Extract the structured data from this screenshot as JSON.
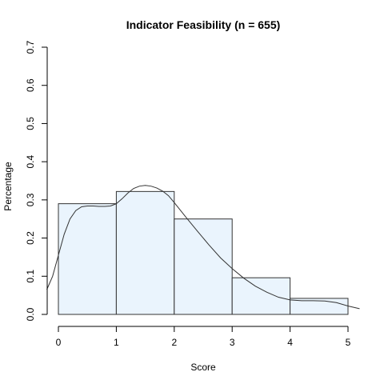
{
  "chart_data": {
    "type": "bar",
    "title": "Indicator Feasibility (n = 655)",
    "xlabel": "Score",
    "ylabel": "Percentage",
    "bins": [
      {
        "x0": 0,
        "x1": 1,
        "value": 0.29
      },
      {
        "x0": 1,
        "x1": 2,
        "value": 0.322
      },
      {
        "x0": 2,
        "x1": 3,
        "value": 0.25
      },
      {
        "x0": 3,
        "x1": 4,
        "value": 0.096
      },
      {
        "x0": 4,
        "x1": 5,
        "value": 0.042
      }
    ],
    "density_curve": {
      "x": [
        -0.2,
        -0.1,
        0.0,
        0.1,
        0.2,
        0.3,
        0.4,
        0.5,
        0.6,
        0.7,
        0.8,
        0.9,
        1.0,
        1.1,
        1.2,
        1.3,
        1.4,
        1.5,
        1.6,
        1.7,
        1.8,
        1.9,
        2.0,
        2.2,
        2.4,
        2.6,
        2.8,
        3.0,
        3.2,
        3.4,
        3.6,
        3.8,
        4.0,
        4.2,
        4.4,
        4.6,
        4.8,
        5.0,
        5.2
      ],
      "y": [
        0.065,
        0.1,
        0.155,
        0.21,
        0.25,
        0.272,
        0.282,
        0.284,
        0.284,
        0.283,
        0.283,
        0.284,
        0.29,
        0.303,
        0.318,
        0.33,
        0.336,
        0.338,
        0.336,
        0.331,
        0.323,
        0.311,
        0.293,
        0.255,
        0.218,
        0.182,
        0.148,
        0.12,
        0.095,
        0.074,
        0.058,
        0.045,
        0.038,
        0.036,
        0.036,
        0.035,
        0.031,
        0.022,
        0.015
      ]
    },
    "x_ticks": [
      "0",
      "1",
      "2",
      "3",
      "4",
      "5"
    ],
    "y_ticks": [
      "0.0",
      "0.1",
      "0.2",
      "0.3",
      "0.4",
      "0.5",
      "0.6",
      "0.7"
    ],
    "xlim": [
      -0.2,
      5.2
    ],
    "ylim": [
      0,
      0.7
    ],
    "bar_fill": "#eaf4fd",
    "bar_stroke": "#333333",
    "grid": false,
    "legend": "none"
  }
}
